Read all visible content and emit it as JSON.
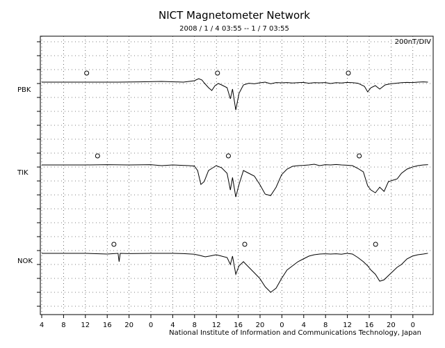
{
  "chart_data": {
    "type": "line",
    "title": "NICT Magnetometer Network",
    "subtitle": "2008 / 1 / 4   03:55 --  1 / 7   03:55",
    "scale_label": "200nT/DIV",
    "footer": "National Institute of Information and Communications Technology, Japan",
    "x_tick_labels": [
      "4",
      "8",
      "12",
      "16",
      "20",
      "0",
      "4",
      "8",
      "12",
      "16",
      "20",
      "0",
      "4",
      "8",
      "12",
      "16",
      "20",
      "0"
    ],
    "x_range_hours": [
      0,
      72
    ],
    "grid": true,
    "series": [
      {
        "name": "PBK",
        "color": "#000000",
        "values": [
          [
            0,
            0
          ],
          [
            10,
            0
          ],
          [
            14,
            0
          ],
          [
            18,
            2
          ],
          [
            22,
            5
          ],
          [
            26,
            0
          ],
          [
            28,
            10
          ],
          [
            28.8,
            25
          ],
          [
            29.4,
            15
          ],
          [
            29.8,
            -5
          ],
          [
            30.6,
            -40
          ],
          [
            31.2,
            -60
          ],
          [
            31.8,
            -25
          ],
          [
            32.4,
            -10
          ],
          [
            33,
            -20
          ],
          [
            34,
            -40
          ],
          [
            34.6,
            -120
          ],
          [
            35,
            -50
          ],
          [
            35.6,
            -200
          ],
          [
            36.2,
            -80
          ],
          [
            37,
            -20
          ],
          [
            38,
            -8
          ],
          [
            39,
            -12
          ],
          [
            40,
            -5
          ],
          [
            41,
            0
          ],
          [
            42,
            -12
          ],
          [
            43,
            -3
          ],
          [
            44,
            -5
          ],
          [
            45,
            -3
          ],
          [
            46,
            -6
          ],
          [
            47,
            -4
          ],
          [
            48,
            -2
          ],
          [
            49,
            -8
          ],
          [
            50,
            -4
          ],
          [
            51,
            -5
          ],
          [
            52,
            -3
          ],
          [
            53,
            -10
          ],
          [
            54,
            -4
          ],
          [
            55,
            -6
          ],
          [
            56,
            -2
          ],
          [
            57,
            -4
          ],
          [
            58,
            -8
          ],
          [
            59.2,
            -30
          ],
          [
            59.8,
            -70
          ],
          [
            60.4,
            -40
          ],
          [
            61.2,
            -25
          ],
          [
            62,
            -50
          ],
          [
            63,
            -20
          ],
          [
            64,
            -12
          ],
          [
            65,
            -8
          ],
          [
            66,
            -4
          ],
          [
            67,
            -2
          ],
          [
            68,
            -3
          ],
          [
            69,
            0
          ],
          [
            70,
            2
          ],
          [
            71,
            0
          ],
          [
            72,
            -2
          ]
        ],
        "markers_hours": [
          8.5,
          32.5,
          56.5
        ]
      },
      {
        "name": "TIK",
        "color": "#000000",
        "values": [
          [
            0,
            0
          ],
          [
            8,
            0
          ],
          [
            12,
            2
          ],
          [
            16,
            0
          ],
          [
            20,
            2
          ],
          [
            22,
            -5
          ],
          [
            24,
            0
          ],
          [
            27,
            -5
          ],
          [
            28,
            -8
          ],
          [
            28.6,
            -40
          ],
          [
            29.2,
            -140
          ],
          [
            29.8,
            -120
          ],
          [
            30.6,
            -40
          ],
          [
            31.4,
            -20
          ],
          [
            32,
            -5
          ],
          [
            33,
            -20
          ],
          [
            34,
            -60
          ],
          [
            34.6,
            -180
          ],
          [
            35,
            -90
          ],
          [
            35.6,
            -230
          ],
          [
            36.2,
            -140
          ],
          [
            37,
            -40
          ],
          [
            38,
            -60
          ],
          [
            39,
            -80
          ],
          [
            40,
            -140
          ],
          [
            41,
            -210
          ],
          [
            42,
            -220
          ],
          [
            43,
            -160
          ],
          [
            44,
            -70
          ],
          [
            45,
            -30
          ],
          [
            46,
            -10
          ],
          [
            47,
            -5
          ],
          [
            48,
            -3
          ],
          [
            49,
            0
          ],
          [
            50,
            5
          ],
          [
            51,
            -5
          ],
          [
            52,
            2
          ],
          [
            53,
            0
          ],
          [
            54,
            3
          ],
          [
            55,
            0
          ],
          [
            56,
            -2
          ],
          [
            57,
            -5
          ],
          [
            58,
            -25
          ],
          [
            59,
            -50
          ],
          [
            59.8,
            -150
          ],
          [
            60.4,
            -180
          ],
          [
            61.2,
            -200
          ],
          [
            62,
            -160
          ],
          [
            62.8,
            -190
          ],
          [
            63.6,
            -120
          ],
          [
            64.4,
            -110
          ],
          [
            65.2,
            -100
          ],
          [
            66,
            -60
          ],
          [
            67,
            -30
          ],
          [
            68,
            -15
          ],
          [
            69,
            -5
          ],
          [
            70,
            0
          ],
          [
            71,
            2
          ],
          [
            72,
            5
          ]
        ],
        "markers_hours": [
          10.5,
          34.5,
          58.5
        ]
      },
      {
        "name": "NOK",
        "color": "#000000",
        "values": [
          [
            0,
            0
          ],
          [
            8,
            0
          ],
          [
            12,
            -5
          ],
          [
            14,
            0
          ],
          [
            14.2,
            -60
          ],
          [
            14.4,
            0
          ],
          [
            16,
            -2
          ],
          [
            20,
            0
          ],
          [
            24,
            0
          ],
          [
            26,
            -2
          ],
          [
            28,
            -6
          ],
          [
            29,
            -15
          ],
          [
            30,
            -25
          ],
          [
            31,
            -18
          ],
          [
            32,
            -10
          ],
          [
            33,
            -20
          ],
          [
            34,
            -30
          ],
          [
            34.6,
            -80
          ],
          [
            35,
            -20
          ],
          [
            35.6,
            -150
          ],
          [
            36.2,
            -90
          ],
          [
            37,
            -60
          ],
          [
            38,
            -100
          ],
          [
            39,
            -140
          ],
          [
            40,
            -180
          ],
          [
            41,
            -240
          ],
          [
            42,
            -280
          ],
          [
            43,
            -250
          ],
          [
            44,
            -180
          ],
          [
            45,
            -120
          ],
          [
            46,
            -90
          ],
          [
            47,
            -60
          ],
          [
            48,
            -40
          ],
          [
            49,
            -20
          ],
          [
            50,
            -10
          ],
          [
            51,
            -5
          ],
          [
            52,
            -3
          ],
          [
            53,
            -5
          ],
          [
            54,
            -3
          ],
          [
            55,
            -6
          ],
          [
            56,
            0
          ],
          [
            57,
            -5
          ],
          [
            58,
            -30
          ],
          [
            59,
            -60
          ],
          [
            59.8,
            -90
          ],
          [
            60.4,
            -120
          ],
          [
            61.2,
            -150
          ],
          [
            62,
            -200
          ],
          [
            62.8,
            -190
          ],
          [
            63.6,
            -160
          ],
          [
            64.4,
            -130
          ],
          [
            65.2,
            -100
          ],
          [
            66,
            -80
          ],
          [
            67,
            -40
          ],
          [
            68,
            -20
          ],
          [
            69,
            -10
          ],
          [
            70,
            -5
          ],
          [
            71,
            0
          ],
          [
            72,
            2
          ]
        ],
        "markers_hours": [
          13.5,
          37.5,
          61.5
        ]
      }
    ]
  }
}
